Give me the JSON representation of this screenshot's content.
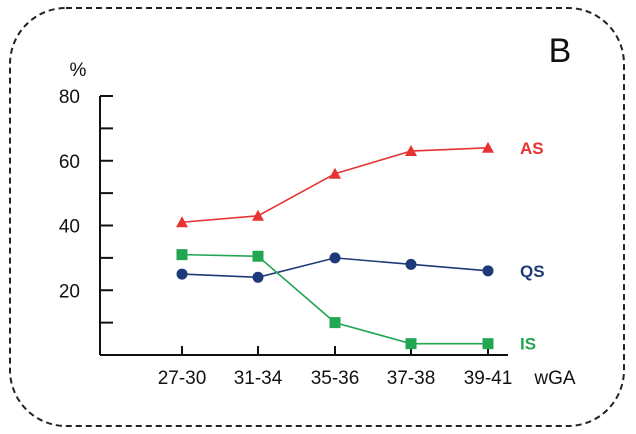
{
  "panel_label": "B",
  "chart_data": {
    "type": "line",
    "categories": [
      "27-30",
      "31-34",
      "35-36",
      "37-38",
      "39-41"
    ],
    "xlabel": "wGA",
    "ylabel": "%",
    "ylim": [
      0,
      80
    ],
    "yticks": [
      20,
      40,
      60,
      80
    ],
    "grid": false,
    "series": [
      {
        "name": "AS",
        "marker": "triangle",
        "color": "#e63333",
        "values": [
          41,
          43,
          56,
          63,
          64
        ]
      },
      {
        "name": "QS",
        "marker": "circle",
        "color": "#1f3a78",
        "values": [
          25,
          24,
          30,
          28,
          26
        ]
      },
      {
        "name": "IS",
        "marker": "square",
        "color": "#22a652",
        "values": [
          31,
          30.5,
          10,
          3.5,
          3.5
        ]
      }
    ]
  }
}
